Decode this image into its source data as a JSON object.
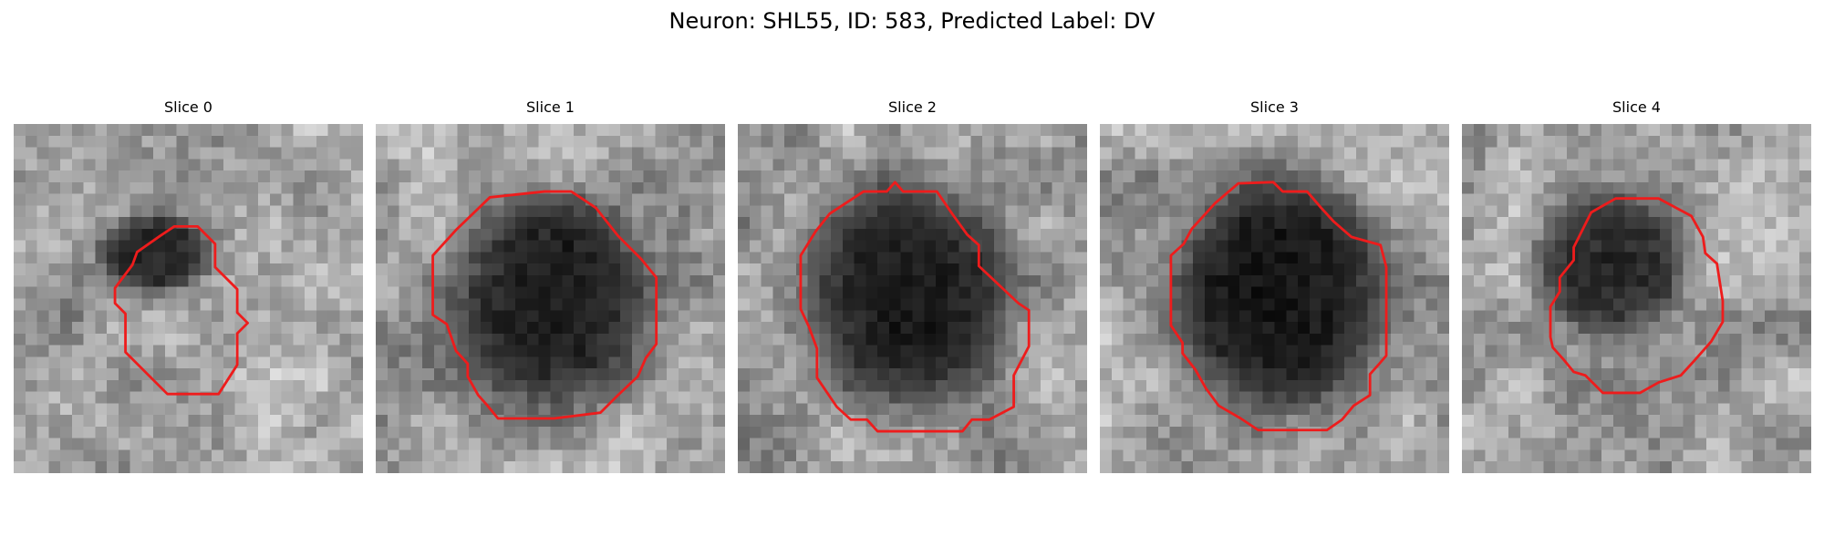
{
  "figure": {
    "title": "Neuron: SHL55, ID: 583, Predicted Label: DV"
  },
  "slices": [
    {
      "title": "Slice 0"
    },
    {
      "title": "Slice 1"
    },
    {
      "title": "Slice 2"
    },
    {
      "title": "Slice 3"
    },
    {
      "title": "Slice 4"
    }
  ],
  "colors": {
    "contour": "#ee1c1c",
    "background": "#ffffff"
  }
}
